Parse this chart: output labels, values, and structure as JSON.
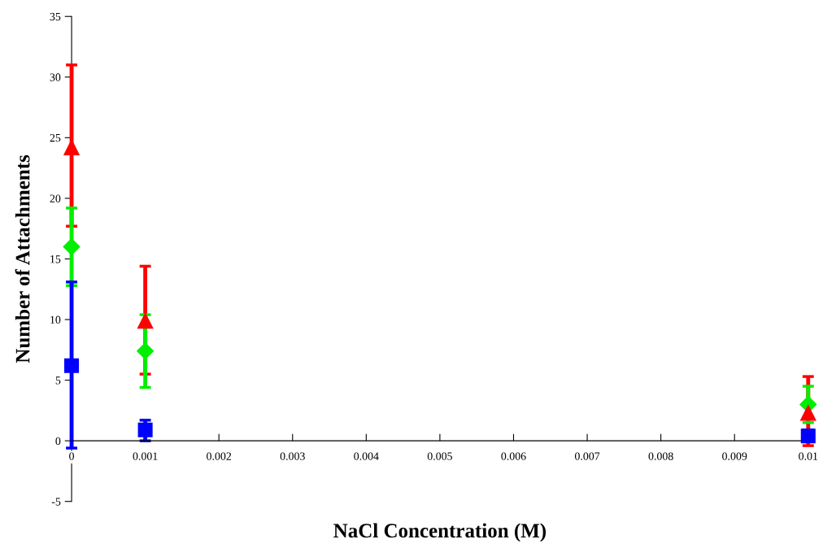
{
  "chart_data": {
    "type": "scatter",
    "xlabel": "NaCl Concentration (M)",
    "ylabel": "Number of Attachments",
    "x": [
      0,
      0.001,
      0.01
    ],
    "xlim": [
      0,
      0.01
    ],
    "xticks": [
      {
        "value": 0,
        "label": "0"
      },
      0.001,
      0.002,
      0.003,
      0.004,
      0.005,
      0.006,
      0.007,
      0.008,
      0.009,
      0.01
    ],
    "ylim": [
      -5,
      35
    ],
    "yticks": [
      -5,
      0,
      5,
      10,
      15,
      20,
      25,
      30,
      35
    ],
    "grid": false,
    "legend": false,
    "series": [
      {
        "color": "#0000ff",
        "marker": "square",
        "values": [
          6.2,
          0.9,
          0.4
        ],
        "errors": [
          [
            -0.6,
            13.1
          ],
          [
            0,
            1.7
          ],
          [
            0,
            0.9
          ]
        ]
      },
      {
        "color": "#00ee00",
        "marker": "diamond",
        "values": [
          16.0,
          7.4,
          3.0
        ],
        "errors": [
          [
            12.8,
            19.2
          ],
          [
            4.4,
            10.4
          ],
          [
            1.5,
            4.5
          ]
        ]
      },
      {
        "color": "#ff0000",
        "marker": "triangle",
        "values": [
          24.2,
          9.9,
          2.3
        ],
        "errors": [
          [
            17.7,
            31.0
          ],
          [
            5.5,
            14.4
          ],
          [
            -0.4,
            5.3
          ]
        ]
      }
    ]
  }
}
